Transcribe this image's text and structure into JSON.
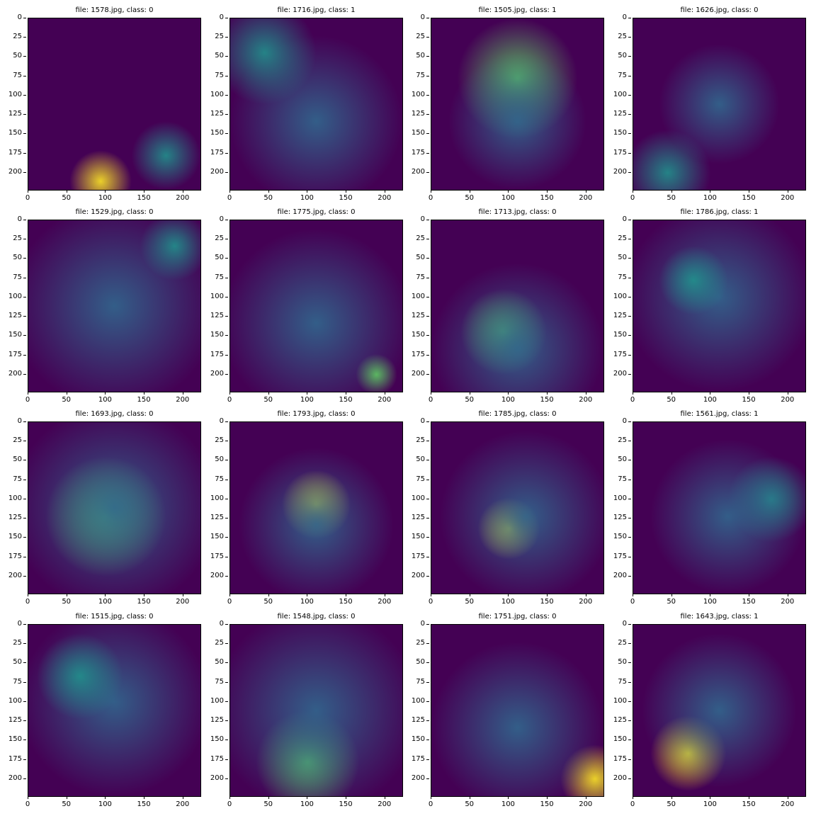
{
  "panels": [
    {
      "title": "file: 1578.jpg, class: 0"
    },
    {
      "title": "file: 1716.jpg, class: 1"
    },
    {
      "title": "file: 1505.jpg, class: 1"
    },
    {
      "title": "file: 1626.jpg, class: 0"
    },
    {
      "title": "file: 1529.jpg, class: 0"
    },
    {
      "title": "file: 1775.jpg, class: 0"
    },
    {
      "title": "file: 1713.jpg, class: 0"
    },
    {
      "title": "file: 1786.jpg, class: 1"
    },
    {
      "title": "file: 1693.jpg, class: 0"
    },
    {
      "title": "file: 1793.jpg, class: 0"
    },
    {
      "title": "file: 1785.jpg, class: 0"
    },
    {
      "title": "file: 1561.jpg, class: 1"
    },
    {
      "title": "file: 1515.jpg, class: 0"
    },
    {
      "title": "file: 1548.jpg, class: 0"
    },
    {
      "title": "file: 1751.jpg, class: 0"
    },
    {
      "title": "file: 1643.jpg, class: 1"
    }
  ],
  "y_ticks": [
    "0",
    "25",
    "50",
    "75",
    "100",
    "125",
    "150",
    "175",
    "200"
  ],
  "x_ticks": [
    "0",
    "50",
    "100",
    "150",
    "200"
  ],
  "colormap": {
    "dark": "#440154",
    "mid": "#31688e",
    "teal": "#21918c",
    "green": "#5ec962",
    "yellow": "#fde725"
  }
}
